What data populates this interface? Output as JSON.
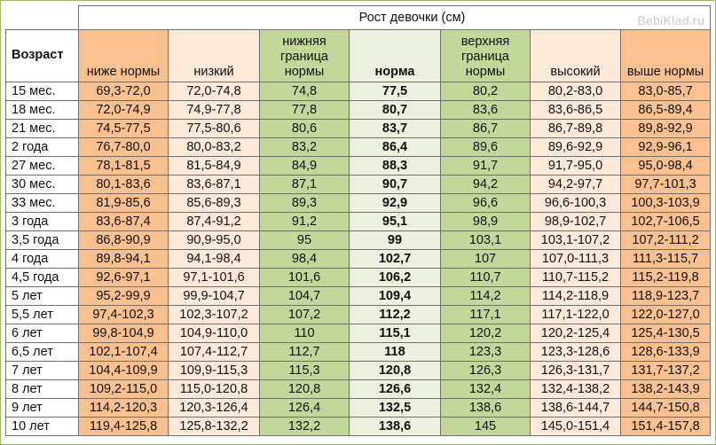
{
  "table": {
    "title": "Рост девочки (см)",
    "watermark": "BebiKlad.ru",
    "age_header": "Возраст",
    "columns": [
      "ниже нормы",
      "низкий",
      "нижняя граница нормы",
      "норма",
      "верхняя граница нормы",
      "высокий",
      "выше нормы"
    ],
    "rows": [
      [
        "15 мес.",
        "69,3-72,0",
        "72,0-74,8",
        "74,8",
        "77,5",
        "80,2",
        "80,2-83,0",
        "83,0-85,7"
      ],
      [
        "18 мес.",
        "72,0-74,9",
        "74,9-77,8",
        "77,8",
        "80,7",
        "83,6",
        "83,6-86,5",
        "86,5-89,4"
      ],
      [
        "21 мес.",
        "74,5-77,5",
        "77,5-80,6",
        "80,6",
        "83,7",
        "86,7",
        "86,7-89,8",
        "89,8-92,9"
      ],
      [
        "2 года",
        "76,7-80,0",
        "80,0-83,2",
        "83,2",
        "86,4",
        "89,6",
        "89,6-92,9",
        "92,9-96,1"
      ],
      [
        "27 мес.",
        "78,1-81,5",
        "81,5-84,9",
        "84,9",
        "88,3",
        "91,7",
        "91,7-95,0",
        "95,0-98,4"
      ],
      [
        "30 мес.",
        "80,1-83,6",
        "83,6-87,1",
        "87,1",
        "90,7",
        "94,2",
        "94,2-97,7",
        "97,7-101,3"
      ],
      [
        "33 мес.",
        "81,9-85,6",
        "85,6-89,3",
        "89,3",
        "92,9",
        "96,6",
        "96,6-100,3",
        "100,3-103,9"
      ],
      [
        "3 года",
        "83,6-87,4",
        "87,4-91,2",
        "91,2",
        "95,1",
        "98,9",
        "98,9-102,7",
        "102,7-106,5"
      ],
      [
        "3,5 года",
        "86,8-90,9",
        "90,9-95,0",
        "95",
        "99",
        "103,1",
        "103,1-107,2",
        "107,2-111,2"
      ],
      [
        "4 года",
        "89,8-94,1",
        "94,1-98,4",
        "98,4",
        "102,7",
        "107",
        "107,0-111,3",
        "111,3-115,7"
      ],
      [
        "4,5 года",
        "92,6-97,1",
        "97,1-101,6",
        "101,6",
        "106,2",
        "110,7",
        "110,7-115,2",
        "115,2-119,8"
      ],
      [
        "5 лет",
        "95,2-99,9",
        "99,9-104,7",
        "104,7",
        "109,4",
        "114,2",
        "114,2-118,9",
        "118,9-123,7"
      ],
      [
        "5,5 лет",
        "97,4-102,3",
        "102,3-107,2",
        "107,2",
        "112,2",
        "117,1",
        "117,1-122,0",
        "122,0-127,0"
      ],
      [
        "6 лет",
        "99,8-104,9",
        "104,9-110,0",
        "110",
        "115,1",
        "120,2",
        "120,2-125,4",
        "125,4-130,5"
      ],
      [
        "6,5 лет",
        "102,1-107,4",
        "107,4-112,7",
        "112,7",
        "118",
        "123,3",
        "123,3-128,6",
        "128,6-133,9"
      ],
      [
        "7 лет",
        "104,4-109,9",
        "109,9-115,3",
        "115,3",
        "120,8",
        "126,3",
        "126,3-131,7",
        "131,7-137,2"
      ],
      [
        "8 лет",
        "109,2-115,0",
        "115,0-120,8",
        "120,8",
        "126,6",
        "132,4",
        "132,4-138,2",
        "138,2-143,9"
      ],
      [
        "9 лет",
        "114,2-120,3",
        "120,3-126,4",
        "126,4",
        "132,5",
        "138,6",
        "138,6-144,7",
        "144,7-150,8"
      ],
      [
        "10 лет",
        "119,4-125,8",
        "125,8-132,2",
        "132,2",
        "138,6",
        "145",
        "145,0-151,4",
        "151,4-157,8"
      ]
    ],
    "colors": {
      "below_above": "#fac090",
      "low_high": "#fde9d9",
      "bounds": "#c4d79b",
      "norm": "#ebf1de"
    }
  }
}
